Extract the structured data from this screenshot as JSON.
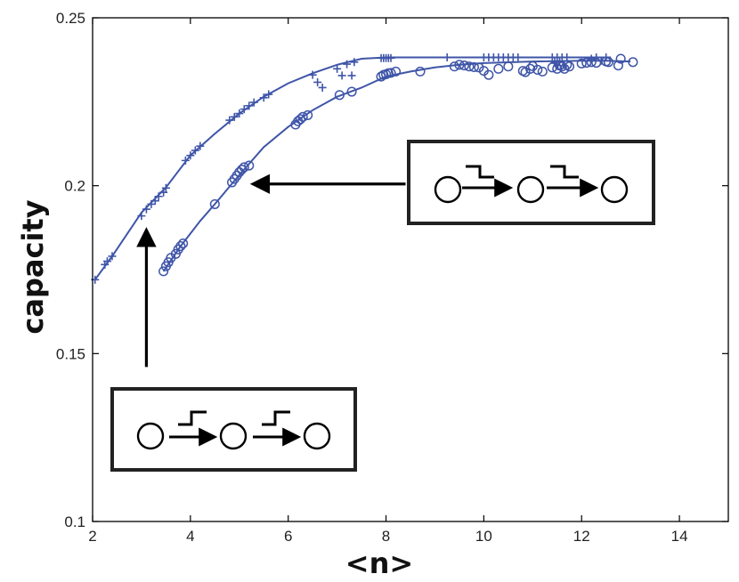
{
  "chart_data": {
    "type": "line",
    "xlabel": "<n>",
    "ylabel": "capacity",
    "xlim": [
      2,
      15
    ],
    "ylim": [
      0.1,
      0.25
    ],
    "xticks": [
      2,
      4,
      6,
      8,
      10,
      12,
      14
    ],
    "yticks": [
      0.1,
      0.15,
      0.2,
      0.25
    ],
    "ytick_labels": [
      "0.1",
      "0.15",
      "0.2",
      "0.25"
    ],
    "grid": false,
    "line_color": "#3f55a8",
    "series": [
      {
        "marker": "plus",
        "curve": [
          [
            2.05,
            0.172
          ],
          [
            2.4,
            0.179
          ],
          [
            3.0,
            0.192
          ],
          [
            3.5,
            0.1995
          ],
          [
            4.0,
            0.209
          ],
          [
            4.5,
            0.2155
          ],
          [
            5.0,
            0.2215
          ],
          [
            5.5,
            0.2265
          ],
          [
            6.0,
            0.2305
          ],
          [
            6.5,
            0.2335
          ],
          [
            7.0,
            0.236
          ],
          [
            7.5,
            0.2378
          ],
          [
            8.0,
            0.2382
          ],
          [
            9.0,
            0.2382
          ],
          [
            10.0,
            0.2382
          ],
          [
            11.0,
            0.2382
          ],
          [
            12.0,
            0.2382
          ],
          [
            12.6,
            0.2382
          ]
        ],
        "points": [
          [
            2.05,
            0.172
          ],
          [
            2.25,
            0.1765
          ],
          [
            2.3,
            0.1775
          ],
          [
            2.4,
            0.179
          ],
          [
            3.0,
            0.191
          ],
          [
            3.1,
            0.193
          ],
          [
            3.2,
            0.1945
          ],
          [
            3.28,
            0.1955
          ],
          [
            3.35,
            0.1968
          ],
          [
            3.45,
            0.198
          ],
          [
            3.5,
            0.1993
          ],
          [
            3.9,
            0.2075
          ],
          [
            4.0,
            0.209
          ],
          [
            4.1,
            0.2105
          ],
          [
            4.2,
            0.2118
          ],
          [
            4.8,
            0.2195
          ],
          [
            4.9,
            0.2205
          ],
          [
            5.0,
            0.2215
          ],
          [
            5.1,
            0.2228
          ],
          [
            5.2,
            0.2238
          ],
          [
            5.3,
            0.2248
          ],
          [
            5.5,
            0.2262
          ],
          [
            5.6,
            0.2272
          ],
          [
            6.5,
            0.233
          ],
          [
            6.6,
            0.2308
          ],
          [
            6.7,
            0.2292
          ],
          [
            7.0,
            0.2348
          ],
          [
            7.2,
            0.2362
          ],
          [
            7.1,
            0.2328
          ],
          [
            7.3,
            0.2328
          ],
          [
            7.35,
            0.2368
          ],
          [
            7.9,
            0.238
          ],
          [
            7.95,
            0.238
          ],
          [
            8.0,
            0.238
          ],
          [
            8.05,
            0.238
          ],
          [
            8.1,
            0.238
          ],
          [
            9.25,
            0.2382
          ],
          [
            10.0,
            0.2382
          ],
          [
            10.1,
            0.2382
          ],
          [
            10.2,
            0.2382
          ],
          [
            10.3,
            0.2382
          ],
          [
            10.4,
            0.2382
          ],
          [
            10.5,
            0.2382
          ],
          [
            10.6,
            0.2382
          ],
          [
            10.7,
            0.2382
          ],
          [
            11.4,
            0.2382
          ],
          [
            11.5,
            0.2382
          ],
          [
            11.6,
            0.2382
          ],
          [
            11.7,
            0.2382
          ],
          [
            11.45,
            0.2368
          ],
          [
            11.55,
            0.2368
          ],
          [
            11.5,
            0.2358
          ],
          [
            12.2,
            0.2378
          ],
          [
            12.3,
            0.2382
          ],
          [
            12.5,
            0.2382
          ],
          [
            12.4,
            0.2372
          ]
        ]
      },
      {
        "marker": "circle",
        "curve": [
          [
            3.45,
            0.1745
          ],
          [
            3.8,
            0.182
          ],
          [
            4.2,
            0.1895
          ],
          [
            4.5,
            0.1945
          ],
          [
            5.0,
            0.2032
          ],
          [
            5.5,
            0.2115
          ],
          [
            6.0,
            0.2175
          ],
          [
            6.5,
            0.2225
          ],
          [
            7.0,
            0.2265
          ],
          [
            7.5,
            0.2292
          ],
          [
            8.0,
            0.2325
          ],
          [
            8.5,
            0.234
          ],
          [
            9.0,
            0.2352
          ],
          [
            9.5,
            0.236
          ],
          [
            10.0,
            0.2365
          ],
          [
            11.0,
            0.237
          ],
          [
            12.0,
            0.2372
          ],
          [
            12.5,
            0.2372
          ],
          [
            13.0,
            0.237
          ]
        ],
        "points": [
          [
            3.45,
            0.1745
          ],
          [
            3.5,
            0.176
          ],
          [
            3.55,
            0.1772
          ],
          [
            3.6,
            0.1785
          ],
          [
            3.7,
            0.1797
          ],
          [
            3.75,
            0.181
          ],
          [
            3.8,
            0.182
          ],
          [
            3.85,
            0.1828
          ],
          [
            4.5,
            0.1945
          ],
          [
            4.85,
            0.201
          ],
          [
            4.9,
            0.202
          ],
          [
            4.95,
            0.203
          ],
          [
            5.0,
            0.204
          ],
          [
            5.05,
            0.2048
          ],
          [
            5.1,
            0.2055
          ],
          [
            5.2,
            0.206
          ],
          [
            6.15,
            0.2182
          ],
          [
            6.2,
            0.2192
          ],
          [
            6.25,
            0.2198
          ],
          [
            6.3,
            0.2205
          ],
          [
            6.4,
            0.221
          ],
          [
            7.05,
            0.227
          ],
          [
            7.3,
            0.228
          ],
          [
            7.9,
            0.2325
          ],
          [
            7.95,
            0.233
          ],
          [
            8.0,
            0.2332
          ],
          [
            8.05,
            0.2335
          ],
          [
            8.1,
            0.2336
          ],
          [
            8.2,
            0.234
          ],
          [
            8.7,
            0.234
          ],
          [
            9.4,
            0.2355
          ],
          [
            9.5,
            0.236
          ],
          [
            9.6,
            0.2358
          ],
          [
            9.7,
            0.2355
          ],
          [
            9.8,
            0.2353
          ],
          [
            9.9,
            0.2352
          ],
          [
            10.0,
            0.2342
          ],
          [
            10.1,
            0.233
          ],
          [
            10.3,
            0.2348
          ],
          [
            10.5,
            0.2355
          ],
          [
            10.8,
            0.2342
          ],
          [
            10.85,
            0.2338
          ],
          [
            10.95,
            0.2348
          ],
          [
            11.0,
            0.2356
          ],
          [
            11.1,
            0.2345
          ],
          [
            11.2,
            0.234
          ],
          [
            11.4,
            0.2352
          ],
          [
            11.5,
            0.2348
          ],
          [
            11.55,
            0.2358
          ],
          [
            11.6,
            0.2355
          ],
          [
            11.65,
            0.2348
          ],
          [
            11.7,
            0.236
          ],
          [
            11.75,
            0.2355
          ],
          [
            12.0,
            0.2364
          ],
          [
            12.1,
            0.2366
          ],
          [
            12.2,
            0.2368
          ],
          [
            12.3,
            0.2366
          ],
          [
            12.5,
            0.237
          ],
          [
            12.55,
            0.2368
          ],
          [
            12.8,
            0.2378
          ],
          [
            12.75,
            0.2358
          ],
          [
            13.05,
            0.2368
          ]
        ]
      }
    ],
    "arrows": [
      {
        "from": [
          3.1,
          0.146
        ],
        "to": [
          3.1,
          0.1865
        ]
      },
      {
        "from": [
          8.4,
          0.2005
        ],
        "to": [
          5.3,
          0.2005
        ]
      }
    ],
    "insets": [
      {
        "id": "upper",
        "step": "down",
        "circles": 3,
        "position": "right-middle"
      },
      {
        "id": "lower",
        "step": "up",
        "circles": 3,
        "position": "bottom-left"
      }
    ]
  }
}
